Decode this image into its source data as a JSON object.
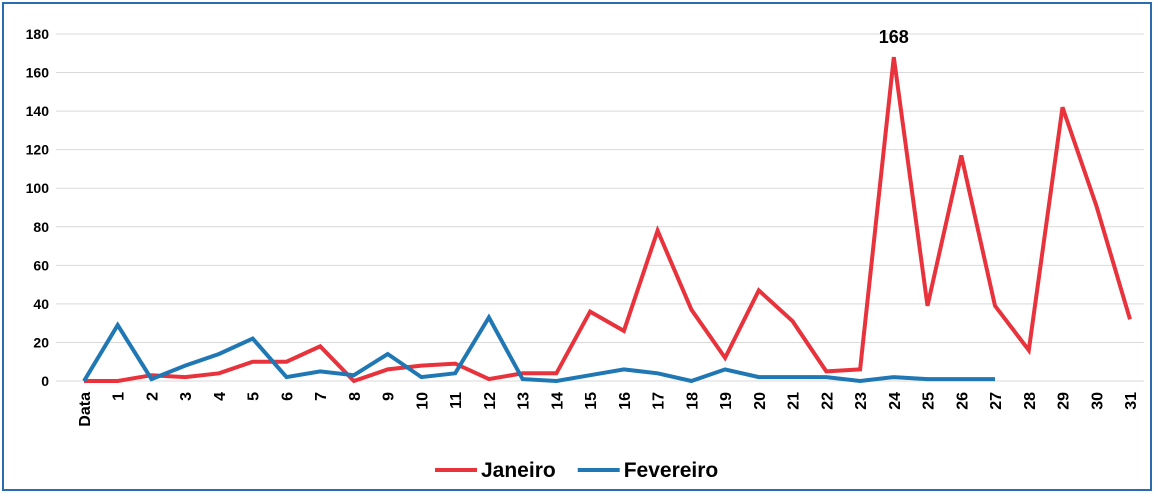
{
  "chart_data": {
    "type": "line",
    "categories": [
      "Data",
      "1",
      "2",
      "3",
      "4",
      "5",
      "6",
      "7",
      "8",
      "9",
      "10",
      "11",
      "12",
      "13",
      "14",
      "15",
      "16",
      "17",
      "18",
      "19",
      "20",
      "21",
      "22",
      "23",
      "24",
      "25",
      "26",
      "27",
      "28",
      "29",
      "30",
      "31"
    ],
    "series": [
      {
        "name": "Janeiro",
        "color": "#e8323c",
        "values": [
          0,
          0,
          3,
          2,
          4,
          10,
          10,
          18,
          0,
          6,
          8,
          9,
          1,
          4,
          4,
          36,
          26,
          78,
          37,
          12,
          47,
          31,
          5,
          6,
          168,
          39,
          117,
          39,
          16,
          142,
          91,
          32
        ]
      },
      {
        "name": "Fevereiro",
        "color": "#1f77b4",
        "values": [
          0,
          29,
          1,
          8,
          14,
          22,
          2,
          5,
          3,
          14,
          2,
          4,
          33,
          1,
          0,
          3,
          6,
          4,
          0,
          6,
          2,
          2,
          2,
          0,
          2,
          1,
          1,
          1,
          null,
          null,
          null,
          null
        ]
      }
    ],
    "ylim": [
      0,
      180
    ],
    "yticks": [
      "0",
      "20",
      "40",
      "60",
      "80",
      "100",
      "120",
      "140",
      "160",
      "180"
    ],
    "grid": true,
    "data_labels": [
      {
        "series": "Janeiro",
        "category": "24",
        "text": "168"
      }
    ],
    "legend": "bottom-center"
  }
}
